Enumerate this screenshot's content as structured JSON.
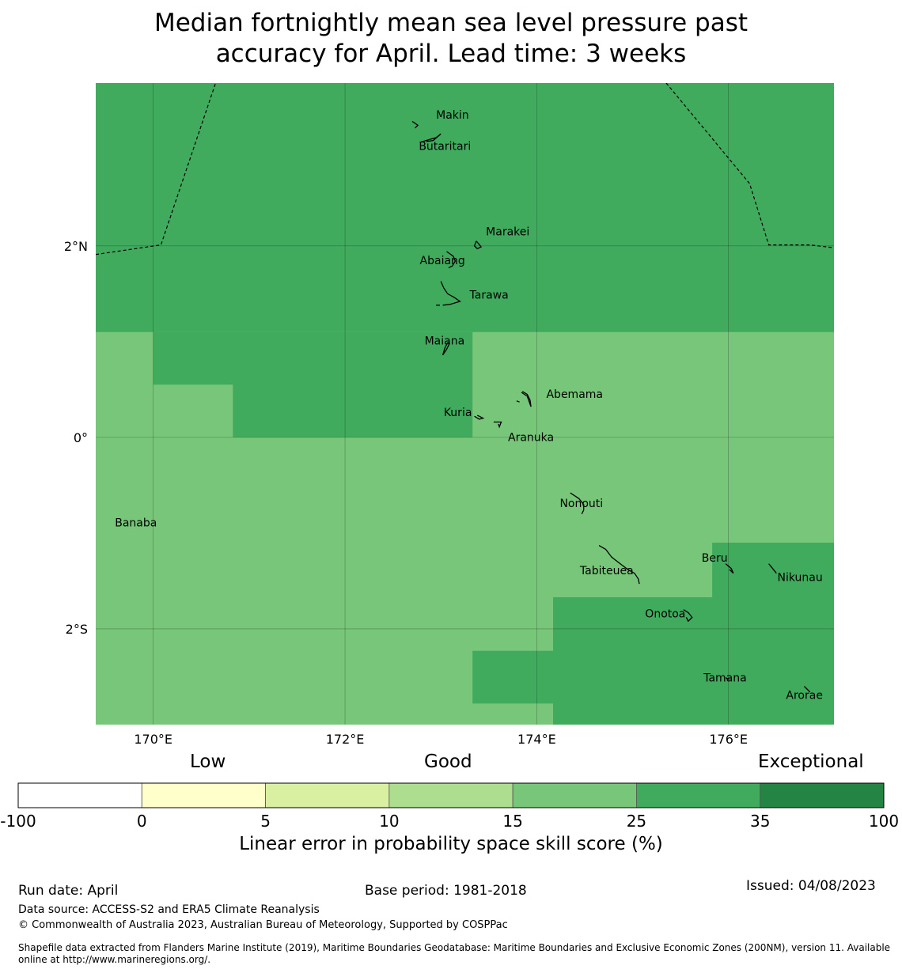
{
  "title": {
    "line1": "Median fortnightly mean sea level pressure past",
    "line2": "accuracy for April. Lead time: 3 weeks"
  },
  "map": {
    "lon_range": [
      169.4,
      177.1
    ],
    "lat_range": [
      -3.0,
      3.7
    ],
    "x_ticks": [
      {
        "value": 170,
        "label": "170°E"
      },
      {
        "value": 172,
        "label": "172°E"
      },
      {
        "value": 174,
        "label": "174°E"
      },
      {
        "value": 176,
        "label": "176°E"
      }
    ],
    "y_ticks": [
      {
        "value": 2,
        "label": "2°N"
      },
      {
        "value": 0,
        "label": "0°"
      },
      {
        "value": -2,
        "label": "2°S"
      }
    ],
    "grid_lines": true,
    "skill_regions": [
      {
        "class": "35 to 25",
        "color": "#41ab5d",
        "polygon": [
          [
            169.4,
            3.7
          ],
          [
            177.1,
            3.7
          ],
          [
            177.1,
            1.1
          ],
          [
            169.4,
            1.1
          ]
        ]
      },
      {
        "class": "35 to 25",
        "color": "#41ab5d",
        "polygon": [
          [
            170.0,
            1.1
          ],
          [
            173.33,
            1.1
          ],
          [
            173.33,
            0.0
          ],
          [
            170.83,
            0.0
          ],
          [
            170.83,
            0.55
          ],
          [
            170.0,
            0.55
          ]
        ]
      },
      {
        "class": "35 to 25",
        "color": "#41ab5d",
        "polygon": [
          [
            175.83,
            -1.1
          ],
          [
            177.1,
            -1.1
          ],
          [
            177.1,
            -3.0
          ],
          [
            174.17,
            -3.0
          ],
          [
            174.17,
            -2.78
          ],
          [
            173.33,
            -2.78
          ],
          [
            173.33,
            -2.23
          ],
          [
            174.17,
            -2.23
          ],
          [
            174.17,
            -1.67
          ],
          [
            175.83,
            -1.67
          ]
        ]
      }
    ],
    "places": [
      {
        "name": "Makin",
        "lon": 172.95,
        "lat": 3.33
      },
      {
        "name": "Butaritari",
        "lon": 172.77,
        "lat": 3.0
      },
      {
        "name": "Marakei",
        "lon": 173.47,
        "lat": 2.11
      },
      {
        "name": "Abaiang",
        "lon": 172.78,
        "lat": 1.81
      },
      {
        "name": "Tarawa",
        "lon": 173.3,
        "lat": 1.45
      },
      {
        "name": "Maiana",
        "lon": 172.83,
        "lat": 0.97
      },
      {
        "name": "Abemama",
        "lon": 174.1,
        "lat": 0.41
      },
      {
        "name": "Kuria",
        "lon": 173.03,
        "lat": 0.22
      },
      {
        "name": "Aranuka",
        "lon": 173.7,
        "lat": -0.04
      },
      {
        "name": "Nonouti",
        "lon": 174.24,
        "lat": -0.73
      },
      {
        "name": "Banaba",
        "lon": 169.6,
        "lat": -0.93
      },
      {
        "name": "Beru",
        "lon": 175.72,
        "lat": -1.3
      },
      {
        "name": "Tabiteuea",
        "lon": 174.45,
        "lat": -1.43
      },
      {
        "name": "Nikunau",
        "lon": 176.51,
        "lat": -1.5
      },
      {
        "name": "Onotoa",
        "lon": 175.13,
        "lat": -1.88
      },
      {
        "name": "Tamana",
        "lon": 175.74,
        "lat": -2.55
      },
      {
        "name": "Arorae",
        "lon": 176.6,
        "lat": -2.73
      }
    ],
    "islands": [
      [
        [
          172.73,
          3.23
        ],
        [
          172.76,
          3.26
        ],
        [
          172.73,
          3.28
        ],
        [
          172.7,
          3.3
        ]
      ],
      [
        [
          172.78,
          3.08
        ],
        [
          172.88,
          3.11
        ],
        [
          172.95,
          3.13
        ],
        [
          173.0,
          3.17
        ],
        [
          172.92,
          3.1
        ],
        [
          172.85,
          3.09
        ]
      ],
      [
        [
          173.37,
          2.05
        ],
        [
          173.42,
          1.99
        ],
        [
          173.38,
          1.97
        ],
        [
          173.35,
          2.0
        ],
        [
          173.37,
          2.05
        ]
      ],
      [
        [
          173.06,
          1.94
        ],
        [
          173.09,
          1.92
        ],
        [
          173.13,
          1.89
        ],
        [
          173.15,
          1.84
        ],
        [
          173.12,
          1.79
        ],
        [
          173.08,
          1.77
        ]
      ],
      [
        [
          173.0,
          1.63
        ],
        [
          173.03,
          1.56
        ],
        [
          173.07,
          1.5
        ],
        [
          173.14,
          1.46
        ],
        [
          173.2,
          1.42
        ],
        [
          173.1,
          1.39
        ],
        [
          173.02,
          1.38
        ]
      ],
      [
        [
          172.95,
          1.38
        ],
        [
          172.99,
          1.38
        ]
      ],
      [
        [
          173.07,
          0.99
        ],
        [
          173.04,
          0.93
        ],
        [
          173.02,
          0.86
        ],
        [
          173.06,
          0.92
        ],
        [
          173.09,
          0.98
        ],
        [
          173.07,
          0.99
        ]
      ],
      [
        [
          173.85,
          0.48
        ],
        [
          173.9,
          0.45
        ],
        [
          173.93,
          0.39
        ],
        [
          173.94,
          0.32
        ],
        [
          173.9,
          0.43
        ],
        [
          173.84,
          0.47
        ]
      ],
      [
        [
          173.79,
          0.38
        ],
        [
          173.82,
          0.37
        ]
      ],
      [
        [
          173.35,
          0.22
        ],
        [
          173.4,
          0.19
        ],
        [
          173.44,
          0.2
        ],
        [
          173.38,
          0.23
        ]
      ],
      [
        [
          173.55,
          0.16
        ],
        [
          173.63,
          0.16
        ],
        [
          173.61,
          0.11
        ],
        [
          173.6,
          0.14
        ]
      ],
      [
        [
          174.35,
          -0.58
        ],
        [
          174.44,
          -0.64
        ],
        [
          174.49,
          -0.7
        ],
        [
          174.49,
          -0.76
        ],
        [
          174.47,
          -0.8
        ]
      ],
      [
        [
          174.65,
          -1.13
        ],
        [
          174.72,
          -1.17
        ],
        [
          174.78,
          -1.25
        ],
        [
          174.87,
          -1.32
        ],
        [
          174.95,
          -1.38
        ],
        [
          175.02,
          -1.42
        ],
        [
          175.06,
          -1.48
        ],
        [
          175.07,
          -1.53
        ]
      ],
      [
        [
          175.97,
          -1.32
        ],
        [
          176.03,
          -1.37
        ],
        [
          176.05,
          -1.42
        ],
        [
          176.01,
          -1.38
        ]
      ],
      [
        [
          176.42,
          -1.32
        ],
        [
          176.46,
          -1.37
        ],
        [
          176.5,
          -1.42
        ]
      ],
      [
        [
          175.53,
          -1.8
        ],
        [
          175.58,
          -1.83
        ],
        [
          175.62,
          -1.88
        ],
        [
          175.58,
          -1.92
        ],
        [
          175.56,
          -1.88
        ]
      ],
      [
        [
          175.97,
          -2.51
        ],
        [
          176.01,
          -2.53
        ]
      ],
      [
        [
          176.79,
          -2.6
        ],
        [
          176.83,
          -2.64
        ],
        [
          176.85,
          -2.66
        ]
      ]
    ],
    "eez_boundaries": [
      [
        [
          169.4,
          1.91
        ],
        [
          170.08,
          2.01
        ],
        [
          170.65,
          3.7
        ]
      ],
      [
        [
          175.35,
          3.7
        ],
        [
          176.22,
          2.65
        ],
        [
          176.42,
          2.01
        ],
        [
          176.85,
          2.01
        ],
        [
          177.1,
          1.98
        ]
      ]
    ]
  },
  "colorbar": {
    "category_labels": [
      "Low",
      "Good",
      "Exceptional"
    ],
    "segments": [
      {
        "from": "-100",
        "to": "0",
        "color": "#ffffff"
      },
      {
        "from": "0",
        "to": "5",
        "color": "#ffffcc"
      },
      {
        "from": "5",
        "to": "10",
        "color": "#d9f0a3"
      },
      {
        "from": "10",
        "to": "15",
        "color": "#addd8e"
      },
      {
        "from": "15",
        "to": "25",
        "color": "#78c679"
      },
      {
        "from": "25",
        "to": "35",
        "color": "#41ab5d"
      },
      {
        "from": "35",
        "to": "100",
        "color": "#238443"
      }
    ],
    "tick_labels": [
      "-100",
      "0",
      "5",
      "10",
      "15",
      "25",
      "35",
      "100"
    ],
    "label": "Linear error in probability space skill score (%)"
  },
  "background_color": "#78c679",
  "footer": {
    "run_date": "Run date: April",
    "base_period": "Base period: 1981-2018",
    "issued": "Issued: 04/08/2023",
    "data_source": "Data source: ACCESS-S2 and ERA5 Climate Reanalysis",
    "copyright": "© Commonwealth of Australia 2023, Australian Bureau of Meteorology, Supported by COSPPac",
    "shapefile": "Shapefile data extracted from Flanders Marine Institute (2019), Maritime Boundaries Geodatabase: Maritime Boundaries and Exclusive Economic Zones (200NM), version 11. Available online at http://www.marineregions.org/."
  }
}
